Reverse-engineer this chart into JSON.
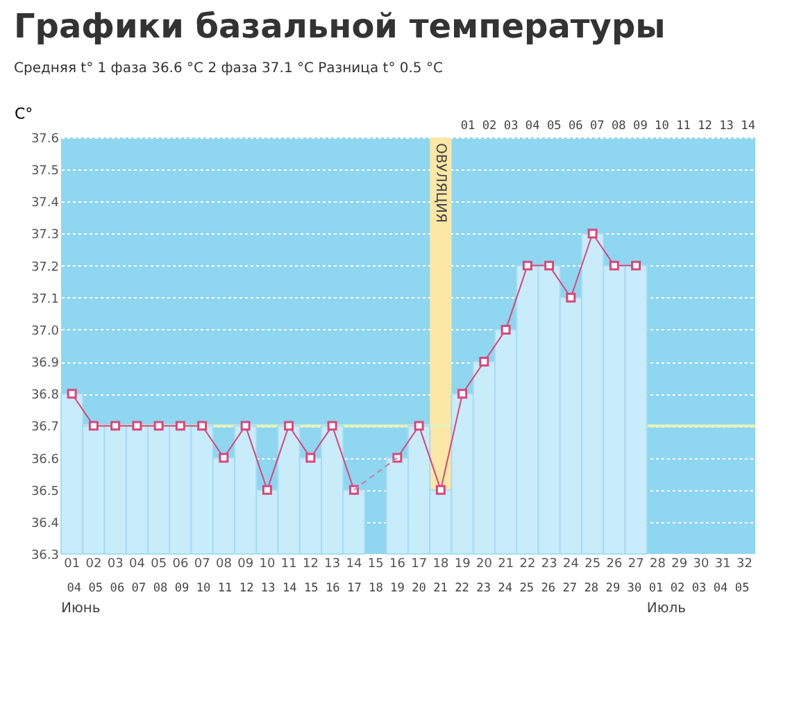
{
  "chart_data": {
    "type": "bar",
    "title": "Графики базальной температуры",
    "ylabel": "C°",
    "categories": [
      "01",
      "02",
      "03",
      "04",
      "05",
      "06",
      "07",
      "08",
      "09",
      "10",
      "11",
      "12",
      "13",
      "14",
      "15",
      "16",
      "17",
      "18",
      "19",
      "20",
      "21",
      "22",
      "23",
      "24",
      "25",
      "26",
      "27",
      "28",
      "29",
      "30",
      "31",
      "32"
    ],
    "series": [
      {
        "color": "#c8ecfa",
        "values": [
          36.8,
          36.7,
          36.7,
          36.7,
          36.7,
          36.7,
          36.7,
          36.6,
          36.7,
          36.5,
          36.7,
          36.6,
          36.7,
          36.5,
          null,
          36.6,
          36.7,
          36.5,
          36.8,
          36.9,
          37.0,
          37.2,
          37.2,
          37.1,
          37.3,
          37.2,
          37.2,
          null,
          null,
          null,
          null,
          null
        ]
      },
      {
        "type": "line",
        "color": "#d9467a",
        "line_style": "solid",
        "values": [
          36.8,
          36.7,
          36.7,
          36.7,
          36.7,
          36.7,
          36.7,
          36.6,
          36.7,
          36.5,
          36.7,
          36.6,
          36.7,
          36.5,
          null,
          36.6,
          36.7,
          36.5,
          36.8,
          36.9,
          37.0,
          37.2,
          37.2,
          37.1,
          37.3,
          37.2,
          37.2,
          null,
          null,
          null,
          null,
          null
        ]
      },
      {
        "type": "line",
        "color": "#c97fa8",
        "values": [
          null,
          null,
          null,
          null,
          null,
          null,
          null,
          null,
          null,
          null,
          null,
          null,
          null,
          36.5,
          null,
          36.6,
          null,
          null,
          null,
          null,
          null,
          null,
          null,
          null,
          null,
          null,
          null,
          null,
          null,
          null,
          null,
          null
        ],
        "line_style": "dashed",
        "marker": "none"
      }
    ],
    "marker": "square",
    "grid": "y",
    "ylim": [
      36.3,
      37.6
    ],
    "yticks": [
      36.3,
      36.4,
      36.5,
      36.6,
      36.7,
      36.8,
      36.9,
      {
        "value": 37.0,
        "label": "37.0"
      },
      37.1,
      37.2,
      37.3,
      37.4,
      37.5,
      37.6
    ],
    "ref_lines": [
      {
        "axis": "y",
        "value": 36.7,
        "color": "#e6f2b8"
      }
    ],
    "bands": [
      {
        "axis": "x",
        "from": "18",
        "to": "18",
        "label": "ОВУЛЯЦИЯ",
        "color": "#fce7a6"
      }
    ],
    "annotations": [
      "Средняя t° 1 фаза 36.6 °C",
      "2 фаза 37.1 °C",
      "Разница t° 0.5 °C",
      "01 02 03 04 05 06 07 08 09 10 11 12 13 14",
      "04 05 06 07 08 09 10 11 12 13 14 15 16 17 18 19 20 21 22 23 24 25 26 27 28 29 30 01 02 03 04 05",
      "Июнь",
      "Июль"
    ]
  }
}
